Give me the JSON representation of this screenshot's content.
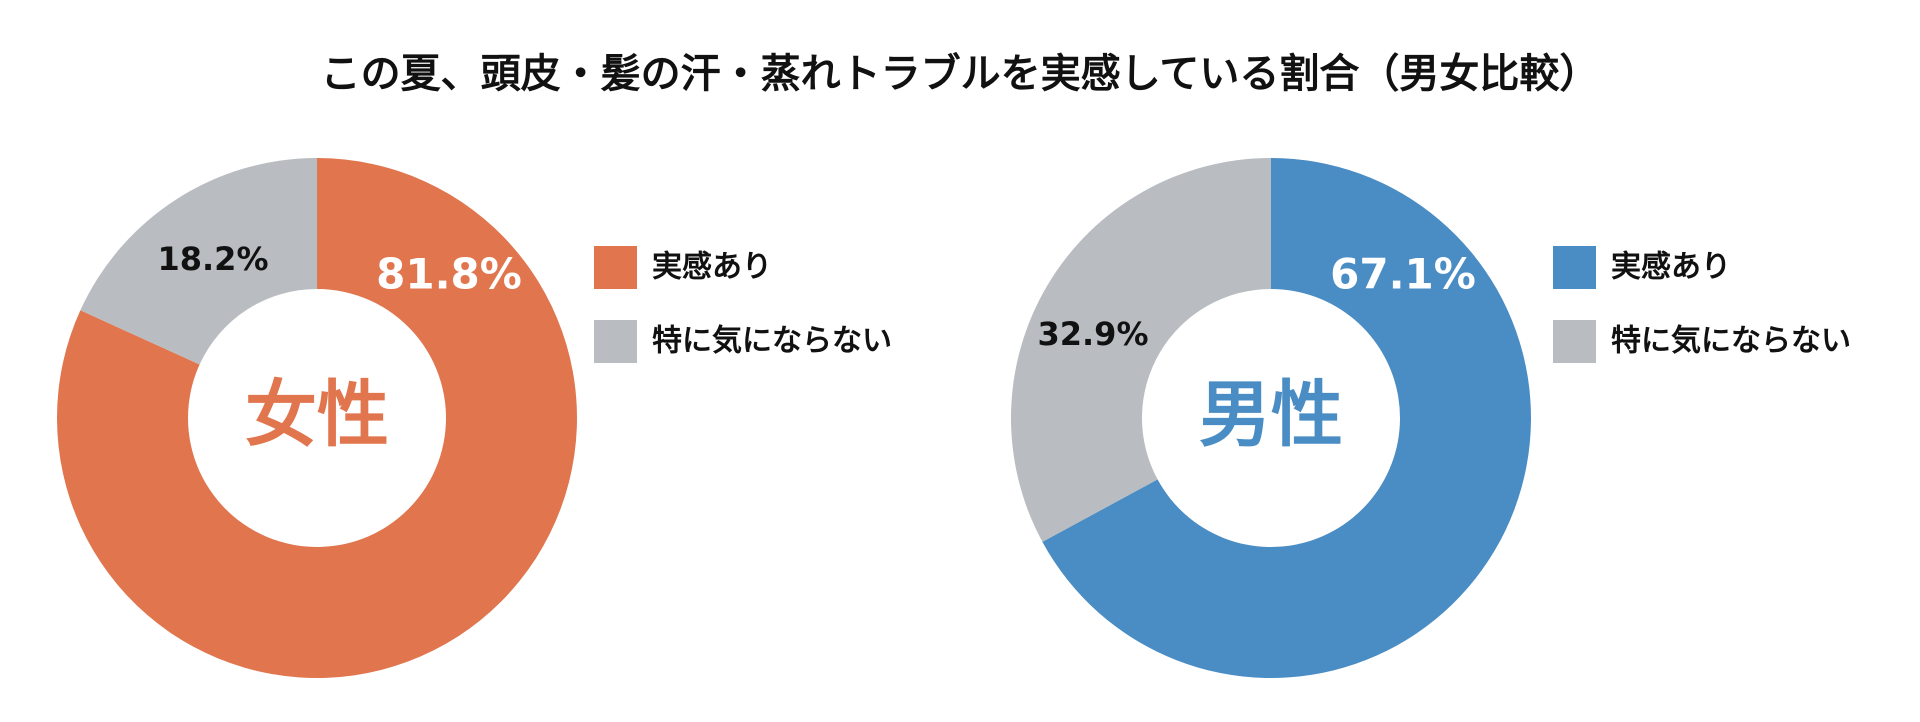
{
  "title": "この夏、頭皮・髪の汗・蒸れトラブルを実感している割合（男女比較）",
  "chart_data": [
    {
      "type": "pie",
      "center_label": "女性",
      "categories": [
        "実感あり",
        "特に気にならない"
      ],
      "values": [
        81.8,
        18.2
      ],
      "value_labels": [
        "81.8%",
        "18.2%"
      ],
      "colors": [
        "#E0754E",
        "#B9BDC1"
      ]
    },
    {
      "type": "pie",
      "center_label": "男性",
      "categories": [
        "実感あり",
        "特に気にならない"
      ],
      "values": [
        67.1,
        32.9
      ],
      "value_labels": [
        "67.1%",
        "32.9%"
      ],
      "colors": [
        "#4A8CC4",
        "#B9BDC1"
      ]
    }
  ]
}
